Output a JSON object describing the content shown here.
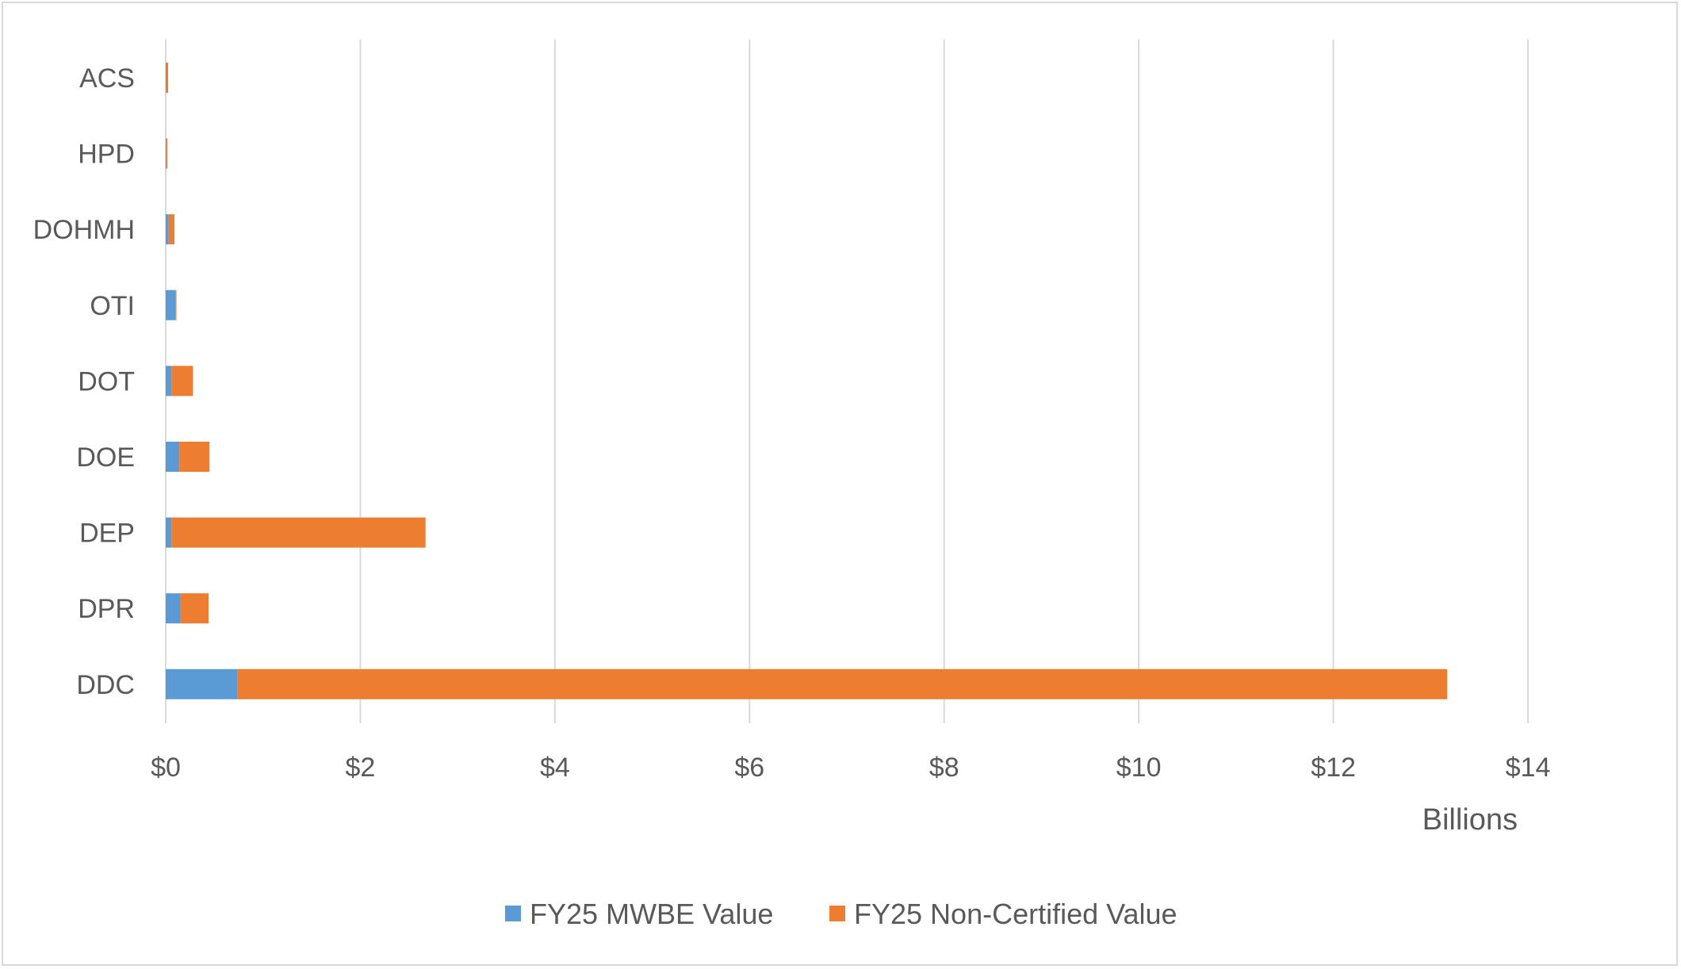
{
  "chart_data": {
    "type": "bar",
    "orientation": "horizontal",
    "stacked": true,
    "categories": [
      "ACS",
      "HPD",
      "DOHMH",
      "OTI",
      "DOT",
      "DOE",
      "DEP",
      "DPR",
      "DDC"
    ],
    "series": [
      {
        "name": "FY25 MWBE Value",
        "color": "#5b9bd5",
        "values": [
          0.005,
          0.01,
          0.03,
          0.1,
          0.06,
          0.14,
          0.06,
          0.15,
          0.74
        ]
      },
      {
        "name": "FY25 Non-Certified Value",
        "color": "#ed7d31",
        "values": [
          0.02,
          0.005,
          0.06,
          0.01,
          0.22,
          0.31,
          2.61,
          0.29,
          12.43
        ]
      }
    ],
    "xlim": [
      0,
      14
    ],
    "x_ticks": [
      0,
      2,
      4,
      6,
      8,
      10,
      12,
      14
    ],
    "x_tick_labels": [
      "$0",
      "$2",
      "$4",
      "$6",
      "$8",
      "$10",
      "$12",
      "$14"
    ],
    "x_unit_label": "Billions",
    "xlabel": "",
    "ylabel": "",
    "title": "",
    "grid": "vertical",
    "legend_position": "bottom"
  }
}
